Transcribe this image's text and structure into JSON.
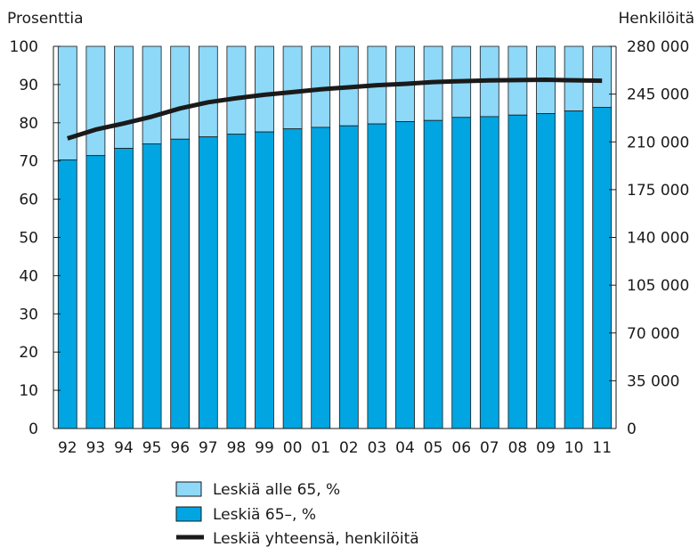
{
  "chart_data": {
    "type": "bar",
    "left_axis_label": "Prosenttia",
    "right_axis_label": "Henkilöitä",
    "categories": [
      "92",
      "93",
      "94",
      "95",
      "96",
      "97",
      "98",
      "99",
      "00",
      "01",
      "02",
      "03",
      "04",
      "05",
      "06",
      "07",
      "08",
      "09",
      "10",
      "11"
    ],
    "y_left_ticks": [
      "0",
      "10",
      "20",
      "30",
      "40",
      "50",
      "60",
      "70",
      "80",
      "90",
      "100"
    ],
    "y_right_ticks": [
      "0",
      "35 000",
      "70 000",
      "105 000",
      "140 000",
      "175 000",
      "210 000",
      "245 000",
      "280 000"
    ],
    "ylim_left": [
      0,
      100
    ],
    "ylim_right": [
      0,
      280000
    ],
    "stacked": true,
    "series": [
      {
        "name": "Leskiä alle 65, %",
        "kind": "bar",
        "color": "#8ed8f8",
        "values": [
          29.7,
          28.6,
          26.7,
          25.5,
          24.3,
          23.7,
          23.0,
          22.4,
          21.6,
          21.2,
          20.8,
          20.3,
          19.7,
          19.4,
          18.6,
          18.4,
          18.0,
          17.6,
          16.9,
          16.0
        ]
      },
      {
        "name": "Leskiä 65–, %",
        "kind": "bar",
        "color": "#00a5e2",
        "values": [
          70.3,
          71.4,
          73.3,
          74.5,
          75.7,
          76.3,
          77.0,
          77.6,
          78.4,
          78.8,
          79.2,
          79.7,
          80.3,
          80.6,
          81.4,
          81.6,
          82.0,
          82.4,
          83.1,
          84.0
        ]
      },
      {
        "name": "Leskiä yhteensä, henkilöitä",
        "kind": "line",
        "axis": "right",
        "color": "#1a1a1a",
        "values": [
          212500,
          219000,
          223500,
          228500,
          234500,
          239000,
          242000,
          244500,
          246500,
          248500,
          250000,
          251500,
          252500,
          253800,
          254500,
          255000,
          255300,
          255500,
          255100,
          254800
        ]
      }
    ],
    "legend": {
      "position": "bottom-center",
      "items": [
        "Leskiä alle 65, %",
        "Leskiä 65–, %",
        "Leskiä yhteensä, henkilöitä"
      ]
    },
    "grid": false
  }
}
